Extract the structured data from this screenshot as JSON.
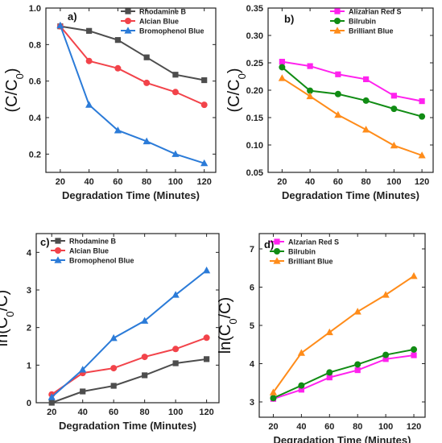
{
  "chart_data": [
    {
      "type": "line",
      "panel_label": "a)",
      "x": [
        20,
        40,
        60,
        80,
        100,
        120
      ],
      "xlabel": "Degradation Time (Minutes)",
      "ylabel_parts": {
        "pre": "(C/C",
        "sub": "0",
        "post": ")"
      },
      "xlim": [
        10,
        128
      ],
      "ylim": [
        0.1,
        1.0
      ],
      "xticks": [
        20,
        40,
        60,
        80,
        100,
        120
      ],
      "yticks": [
        0.2,
        0.4,
        0.6,
        0.8,
        1.0
      ],
      "ytick_labels": [
        "0.2",
        "0.4",
        "0.6",
        "0.8",
        "1.0"
      ],
      "legend_position": "top-right",
      "series": [
        {
          "name": "Rhodamine B",
          "values": [
            0.9,
            0.875,
            0.825,
            0.73,
            0.635,
            0.605
          ],
          "color": "#4d4d4d",
          "marker": "square"
        },
        {
          "name": "Alcian Blue",
          "values": [
            0.9,
            0.71,
            0.67,
            0.59,
            0.54,
            0.47
          ],
          "color": "#f2434a",
          "marker": "circle"
        },
        {
          "name": "Bromophenol Blue",
          "values": [
            0.905,
            0.47,
            0.33,
            0.27,
            0.2,
            0.15
          ],
          "color": "#2b7bd8",
          "marker": "triangle"
        }
      ]
    },
    {
      "type": "line",
      "panel_label": "b)",
      "x": [
        20,
        40,
        60,
        80,
        100,
        120
      ],
      "xlabel": "Degradation Time (Minutes)",
      "ylabel_parts": {
        "pre": "(C/C",
        "sub": "0",
        "post": ")"
      },
      "xlim": [
        10,
        128
      ],
      "ylim": [
        0.05,
        0.35
      ],
      "xticks": [
        20,
        40,
        60,
        80,
        100,
        120
      ],
      "yticks": [
        0.05,
        0.1,
        0.15,
        0.2,
        0.25,
        0.3,
        0.35
      ],
      "ytick_labels": [
        "0.05",
        "0.10",
        "0.15",
        "0.20",
        "0.25",
        "0.30",
        "0.35"
      ],
      "legend_position": "top-right",
      "series": [
        {
          "name": "Alizarian Red S",
          "values": [
            0.252,
            0.244,
            0.229,
            0.22,
            0.19,
            0.18
          ],
          "color": "#ff22ee",
          "marker": "square"
        },
        {
          "name": "Bilrubin",
          "values": [
            0.242,
            0.199,
            0.193,
            0.181,
            0.166,
            0.152
          ],
          "color": "#118c14",
          "marker": "circle"
        },
        {
          "name": "Brilliant Blue",
          "values": [
            0.222,
            0.189,
            0.155,
            0.128,
            0.099,
            0.081
          ],
          "color": "#ff8c1a",
          "marker": "triangle"
        }
      ]
    },
    {
      "type": "line",
      "panel_label": "c)",
      "x": [
        20,
        40,
        60,
        80,
        100,
        120
      ],
      "xlabel": "Degradation Time (Minutes)",
      "ylabel_parts": {
        "pre": "ln(C",
        "sub": "0",
        "post": "/C)"
      },
      "xlim": [
        10,
        128
      ],
      "ylim": [
        0,
        4.5
      ],
      "xticks": [
        20,
        40,
        60,
        80,
        100,
        120
      ],
      "yticks": [
        0,
        1,
        2,
        3,
        4
      ],
      "ytick_labels": [
        "0",
        "1",
        "2",
        "3",
        "4"
      ],
      "legend_position": "top-left",
      "series": [
        {
          "name": "Rhodamine B",
          "values": [
            0.0,
            0.3,
            0.45,
            0.73,
            1.05,
            1.16
          ],
          "color": "#4d4d4d",
          "marker": "square"
        },
        {
          "name": "Alcian Blue",
          "values": [
            0.22,
            0.79,
            0.92,
            1.22,
            1.43,
            1.73
          ],
          "color": "#f2434a",
          "marker": "circle"
        },
        {
          "name": "Bromophenol Blue",
          "values": [
            0.15,
            0.88,
            1.72,
            2.18,
            2.87,
            3.52
          ],
          "color": "#2b7bd8",
          "marker": "triangle"
        }
      ]
    },
    {
      "type": "line",
      "panel_label": "d)",
      "x": [
        20,
        40,
        60,
        80,
        100,
        120
      ],
      "xlabel": "Degradation Time (Minutes)",
      "ylabel_parts": {
        "pre": "ln(C",
        "sub": "0",
        "post": "/C)"
      },
      "xlim": [
        10,
        128
      ],
      "ylim": [
        2.6,
        7.4
      ],
      "xticks": [
        20,
        40,
        60,
        80,
        100,
        120
      ],
      "yticks": [
        3,
        4,
        5,
        6,
        7
      ],
      "ytick_labels": [
        "3",
        "4",
        "5",
        "6",
        "7"
      ],
      "legend_position": "top-left",
      "series": [
        {
          "name": "Alzarian Red S",
          "values": [
            3.08,
            3.32,
            3.64,
            3.83,
            4.12,
            4.22
          ],
          "color": "#ff22ee",
          "marker": "square"
        },
        {
          "name": "Bilrubin",
          "values": [
            3.1,
            3.43,
            3.77,
            3.98,
            4.23,
            4.37
          ],
          "color": "#118c14",
          "marker": "circle"
        },
        {
          "name": "Brilliant Blue",
          "values": [
            3.25,
            4.28,
            4.82,
            5.36,
            5.8,
            6.29
          ],
          "color": "#ff8c1a",
          "marker": "triangle"
        }
      ]
    }
  ]
}
